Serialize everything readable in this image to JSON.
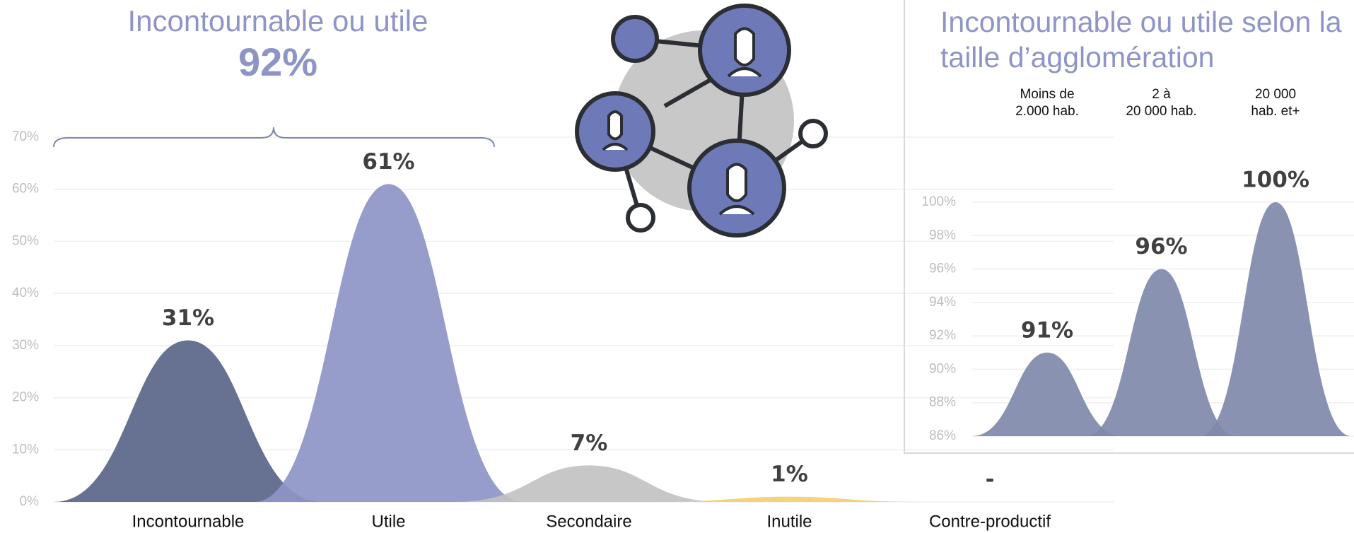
{
  "chart_data": [
    {
      "type": "area",
      "title": "Incontournable ou utile",
      "subtitle": "92%",
      "categories": [
        "Incontournable",
        "Utile",
        "Secondaire",
        "Inutile",
        "Contre-productif"
      ],
      "values": [
        31,
        61,
        7,
        1,
        null
      ],
      "value_labels": [
        "31%",
        "61%",
        "7%",
        "1%",
        "-"
      ],
      "colors": [
        "#5a6589",
        "#8e95c6",
        "#c2c2c2",
        "#f3cf6f",
        "#cccccc"
      ],
      "ylim": [
        0,
        70
      ],
      "yticks": [
        {
          "value": 0,
          "label": "0%"
        },
        {
          "value": 10,
          "label": "10%"
        },
        {
          "value": 20,
          "label": "20%"
        },
        {
          "value": 30,
          "label": "30%"
        },
        {
          "value": 40,
          "label": "40%"
        },
        {
          "value": 50,
          "label": "50%"
        },
        {
          "value": 60,
          "label": "60%"
        },
        {
          "value": 70,
          "label": "70%"
        }
      ],
      "grid": true
    },
    {
      "type": "area",
      "title": "Incontournable ou utile selon la taille d’agglomération",
      "categories": [
        "Moins de\n2.000 hab.",
        "2 à\n20 000 hab.",
        "20 000\nhab. et+"
      ],
      "values": [
        91,
        96,
        100
      ],
      "value_labels": [
        "91%",
        "96%",
        "100%"
      ],
      "colors": [
        "#7f8aaa",
        "#7f8aaa",
        "#7f8aaa"
      ],
      "ylim": [
        86,
        100
      ],
      "yticks": [
        {
          "value": 86,
          "label": "86%"
        },
        {
          "value": 88,
          "label": "88%"
        },
        {
          "value": 90,
          "label": "90%"
        },
        {
          "value": 92,
          "label": "92%"
        },
        {
          "value": 94,
          "label": "94%"
        },
        {
          "value": 96,
          "label": "96%"
        },
        {
          "value": 98,
          "label": "98%"
        },
        {
          "value": 100,
          "label": "100%"
        }
      ],
      "grid": true
    }
  ]
}
